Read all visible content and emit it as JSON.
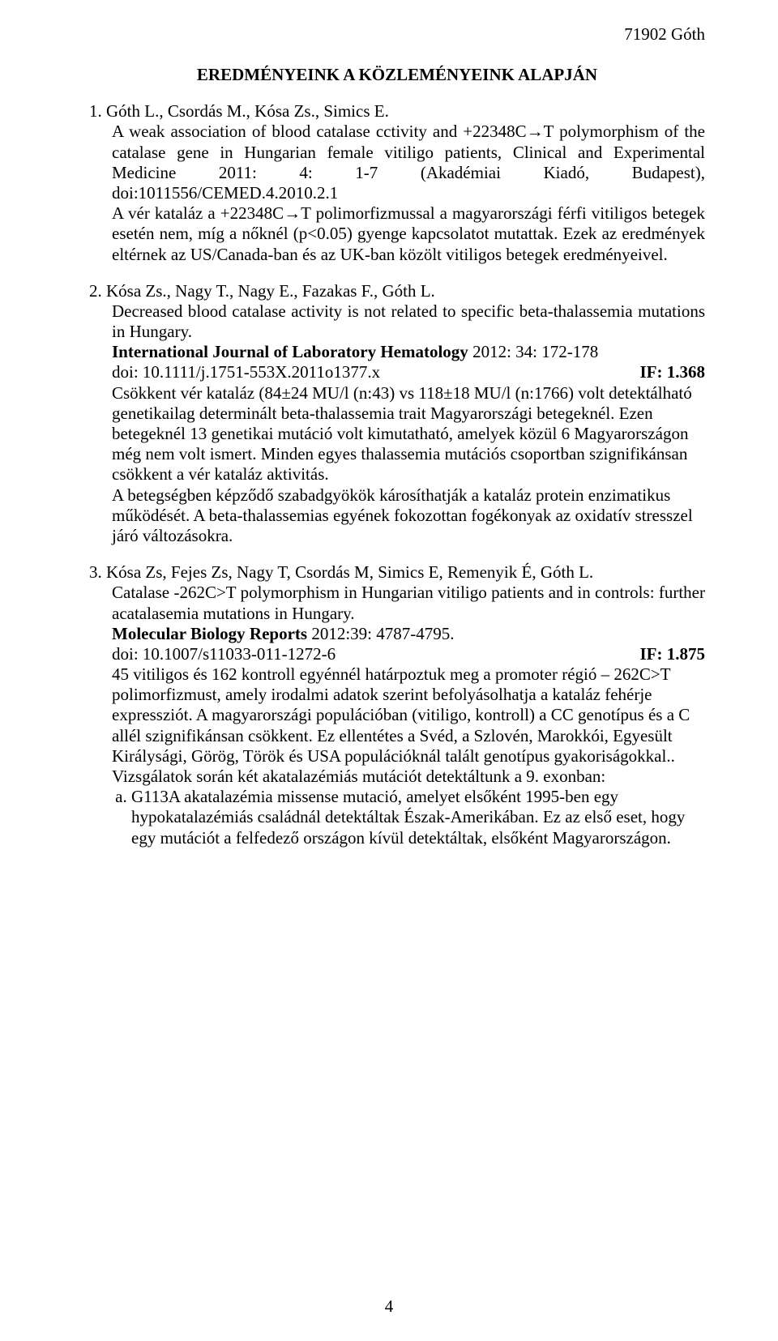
{
  "header": {
    "right": "71902 Góth"
  },
  "title": "EREDMÉNYEINK A KÖZLEMÉNYEINK ALAPJÁN",
  "entries": [
    {
      "num": "1.",
      "authors": "Góth L., Csordás M., Kósa Zs., Simics E.",
      "paper_title": "A weak association of blood catalase cctivity and +22348C→T polymorphism of the catalase gene in Hungarian female vitiligo patients,",
      "journal": "Clinical and Experimental Medicine 2011: 4: 1-7 (Akadémiai Kiadó, Budapest), doi:1011556/CEMED.4.2010.2.1",
      "summary": "A vér kataláz a  +22348C→T polimorfizmussal a  magyarországi férfi vitiligos  betegek esetén nem, míg a nőknél (p<0.05) gyenge kapcsolatot mutattak. Ezek az eredmények eltérnek az US/Canada-ban  és az UK-ban közölt vitiligos betegek eredményeivel."
    },
    {
      "num": "2.",
      "authors": "Kósa Zs., Nagy T., Nagy E., Fazakas F., Góth L.",
      "paper_title": "Decreased blood catalase activity is not related to specific beta-thalassemia mutations in Hungary.",
      "journal_line": "International Journal of  Laboratory Hematology 2012:  34: 172-178",
      "journal_bold": "International Journal of  Laboratory Hematology",
      "journal_rest": " 2012:  34: 172-178",
      "doi": "doi: 10.1111/j.1751-553X.2011o1377.x",
      "if": "IF: 1.368",
      "summary": "Csökkent vér kataláz (84±24 MU/l (n:43) vs 118±18 MU/l (n:1766) volt detektálható genetikailag determinált beta-thalassemia trait  Magyarországi betegeknél. Ezen betegeknél 13 genetikai mutáció volt kimutatható, amelyek közül 6 Magyarországon még nem volt ismert. Minden egyes thalassemia mutációs csoportban szignifikánsan csökkent a vér kataláz aktivitás.",
      "summary2": "A betegségben képződő szabadgyökök károsíthatják a kataláz protein enzimatikus működését. A beta-thalassemias egyének fokozottan fogékonyak az oxidatív stresszel járó változásokra."
    },
    {
      "num": "3.",
      "authors": "Kósa Zs, Fejes Zs, Nagy T, Csordás M, Simics E, Remenyik É, Góth L.",
      "paper_title": "Catalase -262C>T polymorphism in Hungarian vitiligo patients and in controls: further acatalasemia mutations in Hungary.",
      "journal_bold": "Molecular Biology Reports",
      "journal_rest": "  2012:39:  4787-4795.",
      "doi": "doi: 10.1007/s11033-011-1272-6",
      "if": "IF: 1.875",
      "summary": "45 vitiligos és 162 kontroll egyénnél határpoztuk meg a promoter régió – 262C>T polimorfizmust, amely irodalmi adatok szerint befolyásolhatja a kataláz fehérje expressziót. A magyarországi populációban (vitiligo, kontroll)  a CC genotípus és a C allél  szignifikánsan csökkent. Ez ellentétes a Svéd, a Szlovén, Marokkói,  Egyesült Királysági, Görög, Török és USA populációknál talált genotípus gyakoriságokkal..",
      "summary2": "Vizsgálatok során két akatalazémiás mutációt detektáltunk a 9. exonban:",
      "sub_a": "G113A akatalazémia missense mutació, amelyet elsőként 1995-ben egy hypokatalazémiás családnál detektáltak Észak-Amerikában. Ez az első eset, hogy egy mutációt a felfedező országon kívül detektáltak, elsőként Magyarországon."
    }
  ],
  "pagenum": "4"
}
